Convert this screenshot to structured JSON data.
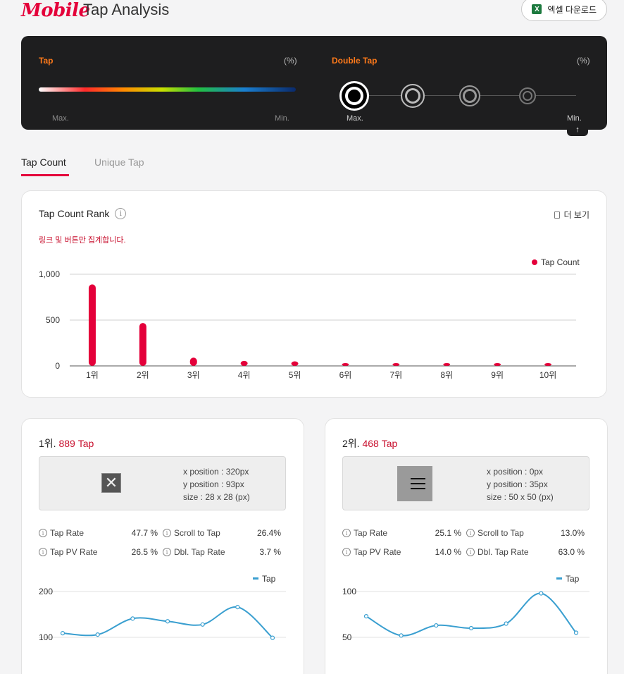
{
  "header": {
    "brand": "Mobile",
    "title": "Tap Analysis",
    "excel_label": "엑셀 다운로드",
    "excel_icon": "X"
  },
  "legend": {
    "tap_label": "Tap",
    "tap_unit": "(%)",
    "tap_max": "Max.",
    "tap_min": "Min.",
    "double_tap_label": "Double Tap",
    "double_tap_unit": "(%)",
    "dt_max": "Max.",
    "dt_min": "Min.",
    "accent_color": "#ff7a1a"
  },
  "tabs": [
    {
      "label": "Tap Count",
      "active": true
    },
    {
      "label": "Unique Tap",
      "active": false
    }
  ],
  "rank": {
    "title": "Tap Count Rank",
    "info_icon": "i",
    "more_label": "더 보기",
    "note": "링크 및 버튼만 집계합니다.",
    "legend_label": "Tap Count",
    "bar_color": "#e4003a"
  },
  "chart_data": [
    {
      "type": "bar",
      "categories": [
        "1위",
        "2위",
        "3위",
        "4위",
        "5위",
        "6위",
        "7위",
        "8위",
        "9위",
        "10위"
      ],
      "series": [
        {
          "name": "Tap Count",
          "values": [
            889,
            468,
            90,
            55,
            50,
            20,
            15,
            14,
            12,
            11
          ]
        }
      ],
      "ylim": [
        0,
        1000
      ],
      "yticks": [
        "1,000",
        "500",
        "0"
      ],
      "ytick_values": [
        1000,
        500,
        0
      ],
      "grid": true,
      "legend_position": "top-right"
    },
    {
      "type": "line",
      "x": [
        1,
        2,
        3,
        4,
        5,
        6,
        7
      ],
      "series": [
        {
          "name": "Tap",
          "values": [
            109,
            106,
            141,
            135,
            128,
            166,
            99
          ]
        }
      ],
      "ylim": [
        100,
        200
      ],
      "yticks": [
        "200",
        "100"
      ],
      "ytick_values": [
        200,
        100
      ],
      "grid": true,
      "legend_position": "top-right"
    },
    {
      "type": "line",
      "x": [
        1,
        2,
        3,
        4,
        5,
        6,
        7
      ],
      "series": [
        {
          "name": "Tap",
          "values": [
            73,
            52,
            63,
            60,
            65,
            98,
            55
          ]
        }
      ],
      "ylim": [
        50,
        100
      ],
      "yticks": [
        "100",
        "50"
      ],
      "ytick_values": [
        100,
        50
      ],
      "grid": true,
      "legend_position": "top-right"
    }
  ],
  "details": [
    {
      "rank": "1위.",
      "count": "889 Tap",
      "thumb_icon": "close-x-icon",
      "x_position": "x position : 320px",
      "y_position": "y position : 93px",
      "size": "size : 28 x 28 (px)",
      "stats": {
        "tap_rate_label": "Tap Rate",
        "tap_rate": "47.7 %",
        "scroll_label": "Scroll to Tap",
        "scroll": "26.4%",
        "pv_label": "Tap PV Rate",
        "pv": "26.5 %",
        "dbl_label": "Dbl. Tap Rate",
        "dbl": "3.7 %"
      },
      "legend": "Tap"
    },
    {
      "rank": "2위.",
      "count": "468 Tap",
      "thumb_icon": "hamburger-menu-icon",
      "x_position": "x position : 0px",
      "y_position": "y position : 35px",
      "size": "size : 50 x 50 (px)",
      "stats": {
        "tap_rate_label": "Tap Rate",
        "tap_rate": "25.1 %",
        "scroll_label": "Scroll to Tap",
        "scroll": "13.0%",
        "pv_label": "Tap PV Rate",
        "pv": "14.0 %",
        "dbl_label": "Dbl. Tap Rate",
        "dbl": "63.0 %"
      },
      "legend": "Tap"
    }
  ]
}
